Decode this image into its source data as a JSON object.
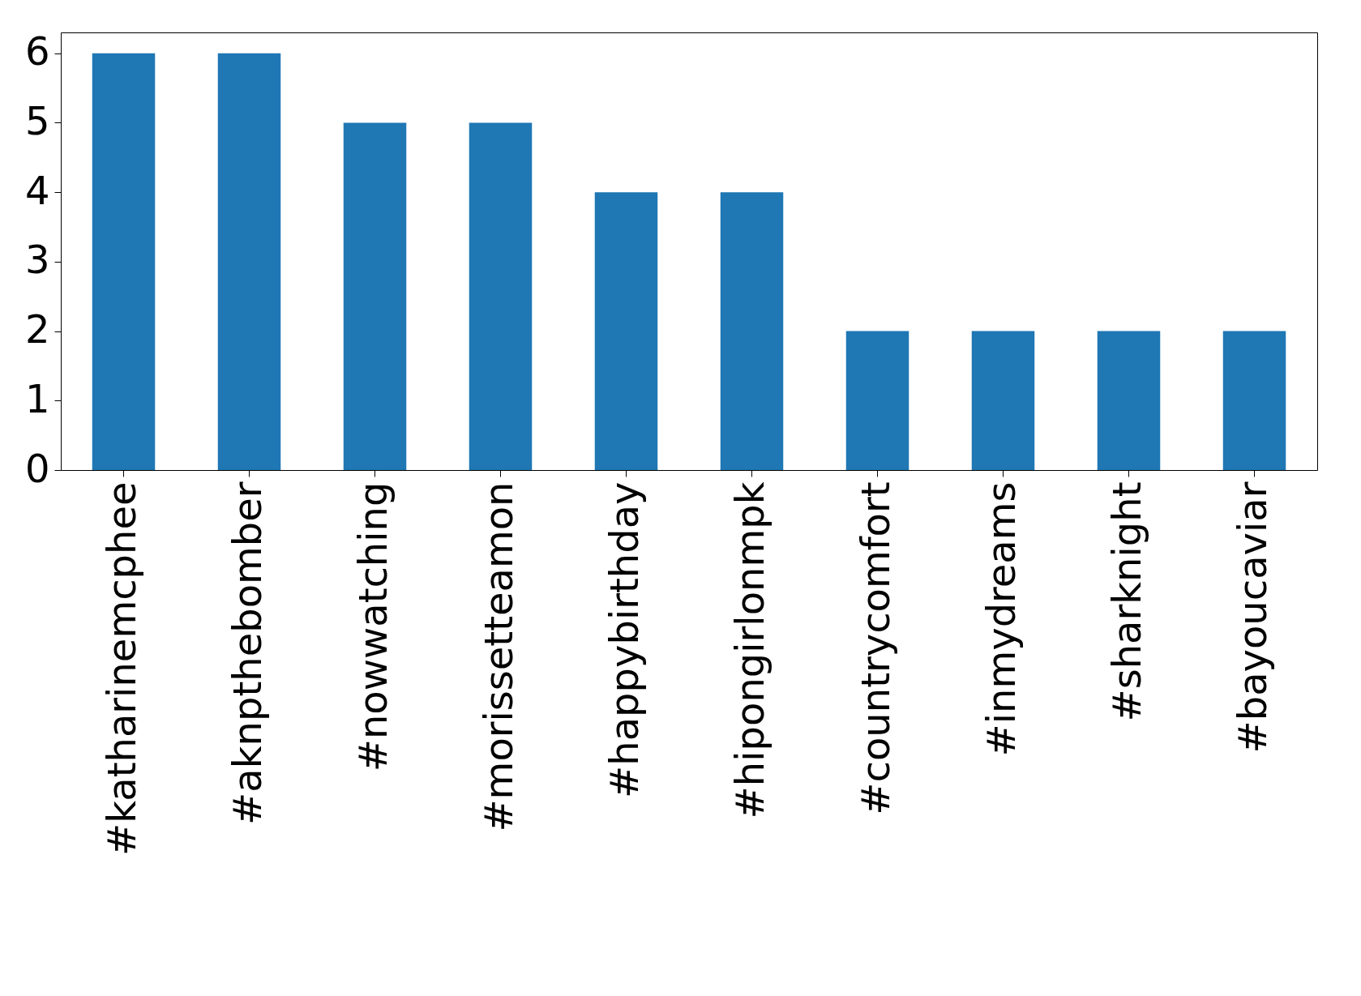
{
  "chart_data": {
    "type": "bar",
    "categories": [
      "#katharinemcphee",
      "#aknpthebomber",
      "#nowwatching",
      "#morissetteamon",
      "#happybirthday",
      "#hipongirlonmpk",
      "#countrycomfort",
      "#inmydreams",
      "#sharknight",
      "#bayoucaviar"
    ],
    "values": [
      6,
      6,
      5,
      5,
      4,
      4,
      2,
      2,
      2,
      2
    ],
    "color": "#1f77b4",
    "ylim": [
      0,
      6.3
    ],
    "yticks": [
      0,
      1,
      2,
      3,
      4,
      5,
      6
    ],
    "grid": false
  }
}
